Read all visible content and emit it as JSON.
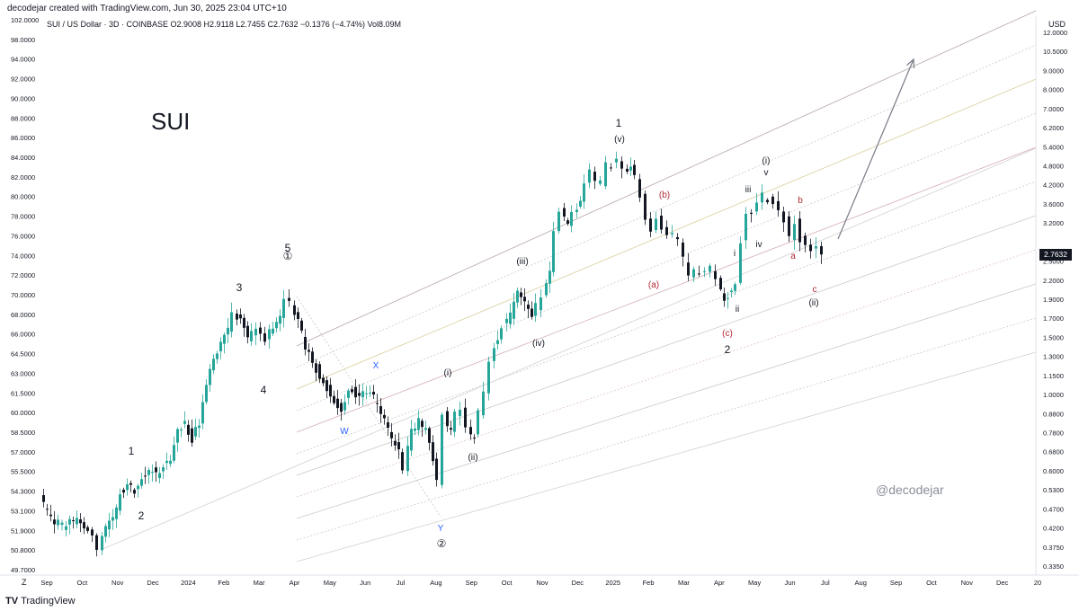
{
  "header": {
    "credit": "decodejar created with TradingView.com, Jun 30, 2025 23:04 UTC+10"
  },
  "legend": {
    "text": "SUI / US Dollar · 3D · COINBASE  O2.9008  H2.9118  L2.7455  C2.7632  −0.1376 (−4.74%)  Vol8.09M"
  },
  "title": "SUI",
  "watermark": "@decodejar",
  "footer": {
    "brand": "TradingView",
    "z_key": "Z"
  },
  "price_axis": {
    "currency": "USD",
    "last_price": "2.7632",
    "last_price_color": "#131722"
  },
  "colors": {
    "up": "#26a69a",
    "down": "#131722",
    "arrow": "#787b86",
    "wave_blue": "#2962ff",
    "wave_red": "#b22833"
  },
  "chart_data": {
    "type": "candlestick",
    "title": "SUI",
    "x_axis": {
      "labels": [
        "Sep",
        "Oct",
        "Nov",
        "Dec",
        "2024",
        "Feb",
        "Mar",
        "Apr",
        "May",
        "Jun",
        "Jul",
        "Aug",
        "Sep",
        "Oct",
        "Nov",
        "Dec",
        "2025",
        "Feb",
        "Mar",
        "Apr",
        "May",
        "Jun",
        "Jul",
        "Aug",
        "Sep",
        "Oct",
        "Nov",
        "Dec",
        "20"
      ],
      "range": [
        "2023-09",
        "2026-01"
      ]
    },
    "left_axis": {
      "ticks": [
        "102.0000",
        "98.0000",
        "94.0000",
        "92.0000",
        "90.0000",
        "88.0000",
        "86.0000",
        "84.0000",
        "82.0000",
        "80.0000",
        "78.0000",
        "76.0000",
        "74.0000",
        "72.0000",
        "70.0000",
        "68.0000",
        "66.0000",
        "64.5000",
        "63.0000",
        "61.5000",
        "60.0000",
        "58.5000",
        "57.0000",
        "55.5000",
        "54.3000",
        "53.1000",
        "51.9000",
        "50.8000",
        "49.7000"
      ]
    },
    "right_axis": {
      "scale": "log",
      "unit": "USD",
      "ticks": [
        "12.0000",
        "10.5000",
        "9.0000",
        "8.0000",
        "7.0000",
        "6.2000",
        "5.4000",
        "4.8000",
        "4.2000",
        "3.6000",
        "3.2000",
        "2.7632",
        "2.5000",
        "2.2000",
        "1.9000",
        "1.7000",
        "1.5000",
        "1.3000",
        "1.1500",
        "1.0000",
        "0.8800",
        "0.7800",
        "0.6800",
        "0.6000",
        "0.5300",
        "0.4700",
        "0.4200",
        "0.3750",
        "0.3350"
      ]
    },
    "waves": [
      "1",
      "2",
      "3",
      "4",
      "5",
      "①",
      "W",
      "X",
      "Y",
      "②",
      "(i)",
      "(ii)",
      "(iii)",
      "(iv)",
      "(v)",
      "1",
      "(a)",
      "(b)",
      "(c)",
      "2",
      "i",
      "ii",
      "iii",
      "iv",
      "v",
      "(i)",
      "a",
      "b",
      "c",
      "(ii)"
    ],
    "candle_path": [
      [
        47,
        556
      ],
      [
        55,
        568
      ],
      [
        63,
        582
      ],
      [
        72,
        585
      ],
      [
        80,
        578
      ],
      [
        88,
        580
      ],
      [
        96,
        590
      ],
      [
        106,
        597
      ],
      [
        112,
        610
      ],
      [
        120,
        586
      ],
      [
        128,
        580
      ],
      [
        136,
        548
      ],
      [
        144,
        540
      ],
      [
        152,
        545
      ],
      [
        160,
        530
      ],
      [
        168,
        522
      ],
      [
        176,
        528
      ],
      [
        184,
        520
      ],
      [
        192,
        508
      ],
      [
        200,
        478
      ],
      [
        208,
        472
      ],
      [
        216,
        488
      ],
      [
        224,
        470
      ],
      [
        232,
        425
      ],
      [
        240,
        398
      ],
      [
        248,
        380
      ],
      [
        256,
        368
      ],
      [
        262,
        350
      ],
      [
        270,
        355
      ],
      [
        278,
        378
      ],
      [
        288,
        368
      ],
      [
        298,
        378
      ],
      [
        306,
        362
      ],
      [
        314,
        350
      ],
      [
        320,
        328
      ],
      [
        326,
        338
      ],
      [
        334,
        358
      ],
      [
        342,
        385
      ],
      [
        350,
        400
      ],
      [
        358,
        420
      ],
      [
        366,
        432
      ],
      [
        374,
        445
      ],
      [
        382,
        458
      ],
      [
        390,
        430
      ],
      [
        398,
        440
      ],
      [
        406,
        436
      ],
      [
        414,
        438
      ],
      [
        422,
        450
      ],
      [
        430,
        468
      ],
      [
        438,
        488
      ],
      [
        446,
        502
      ],
      [
        452,
        520
      ],
      [
        460,
        480
      ],
      [
        468,
        470
      ],
      [
        476,
        478
      ],
      [
        484,
        510
      ],
      [
        490,
        535
      ],
      [
        496,
        462
      ],
      [
        504,
        482
      ],
      [
        510,
        460
      ],
      [
        516,
        452
      ],
      [
        522,
        478
      ],
      [
        530,
        488
      ],
      [
        536,
        460
      ],
      [
        542,
        440
      ],
      [
        548,
        400
      ],
      [
        556,
        375
      ],
      [
        562,
        362
      ],
      [
        570,
        350
      ],
      [
        578,
        325
      ],
      [
        586,
        335
      ],
      [
        594,
        348
      ],
      [
        600,
        342
      ],
      [
        606,
        330
      ],
      [
        614,
        300
      ],
      [
        620,
        258
      ],
      [
        626,
        235
      ],
      [
        634,
        248
      ],
      [
        640,
        240
      ],
      [
        648,
        228
      ],
      [
        654,
        208
      ],
      [
        660,
        190
      ],
      [
        666,
        200
      ],
      [
        672,
        205
      ],
      [
        678,
        185
      ],
      [
        684,
        182
      ],
      [
        690,
        180
      ],
      [
        696,
        192
      ],
      [
        704,
        186
      ],
      [
        710,
        198
      ],
      [
        716,
        218
      ],
      [
        722,
        245
      ],
      [
        728,
        255
      ],
      [
        734,
        240
      ],
      [
        740,
        252
      ],
      [
        746,
        260
      ],
      [
        752,
        262
      ],
      [
        758,
        270
      ],
      [
        764,
        290
      ],
      [
        770,
        310
      ],
      [
        776,
        300
      ],
      [
        782,
        305
      ],
      [
        788,
        300
      ],
      [
        794,
        298
      ],
      [
        800,
        310
      ],
      [
        808,
        335
      ],
      [
        816,
        320
      ],
      [
        822,
        315
      ],
      [
        828,
        270
      ],
      [
        834,
        238
      ],
      [
        840,
        235
      ],
      [
        846,
        222
      ],
      [
        852,
        218
      ],
      [
        858,
        222
      ],
      [
        864,
        225
      ],
      [
        870,
        238
      ],
      [
        876,
        245
      ],
      [
        882,
        262
      ],
      [
        888,
        248
      ],
      [
        894,
        265
      ],
      [
        900,
        275
      ],
      [
        906,
        280
      ],
      [
        912,
        278
      ],
      [
        916,
        282
      ]
    ],
    "arrow": {
      "from": [
        932,
        266
      ],
      "to": [
        1016,
        66
      ]
    }
  }
}
